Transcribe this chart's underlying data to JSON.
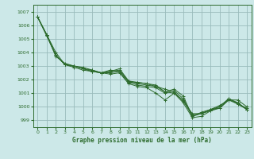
{
  "background_color": "#cce8e8",
  "grid_color": "#99bbbb",
  "line_color": "#2d6b2d",
  "title": "Graphe pression niveau de la mer (hPa)",
  "xlim": [
    -0.5,
    23.5
  ],
  "ylim": [
    998.5,
    1007.5
  ],
  "yticks": [
    999,
    1000,
    1001,
    1002,
    1003,
    1004,
    1005,
    1006,
    1007
  ],
  "xticks": [
    0,
    1,
    2,
    3,
    4,
    5,
    6,
    7,
    8,
    9,
    10,
    11,
    12,
    13,
    14,
    15,
    16,
    17,
    18,
    19,
    20,
    21,
    22,
    23
  ],
  "series": [
    [
      1006.6,
      1005.3,
      1003.8,
      1003.1,
      1003.0,
      1002.8,
      1002.7,
      1002.5,
      1002.6,
      1002.7,
      1001.9,
      1001.8,
      1001.7,
      1001.6,
      1001.1,
      1001.3,
      1000.8,
      999.3,
      999.6,
      999.8,
      1000.1,
      1000.5,
      1000.3,
      999.8
    ],
    [
      1006.6,
      1005.3,
      1003.7,
      1003.2,
      1003.0,
      1002.8,
      1002.6,
      1002.5,
      1002.4,
      1002.5,
      1001.7,
      1001.5,
      1001.4,
      1001.0,
      1000.5,
      1001.0,
      1000.3,
      999.2,
      999.3,
      999.7,
      999.9,
      1000.5,
      1000.2,
      999.9
    ],
    [
      1006.6,
      1005.3,
      1003.8,
      1003.1,
      1002.9,
      1002.7,
      1002.6,
      1002.5,
      1002.5,
      1002.6,
      1001.8,
      1001.6,
      1001.5,
      1001.4,
      1001.0,
      1001.2,
      1000.6,
      999.4,
      999.5,
      999.8,
      999.9,
      1000.5,
      1000.5,
      1000.0
    ],
    [
      1006.6,
      1005.2,
      1003.8,
      1003.1,
      1003.0,
      1002.9,
      1002.7,
      1002.5,
      1002.6,
      1002.8,
      1001.9,
      1001.7,
      1001.6,
      1001.5,
      1001.3,
      1001.1,
      1000.4,
      999.5,
      999.5,
      999.7,
      1000.0,
      1000.6,
      1000.3,
      999.8
    ],
    [
      1006.6,
      1005.3,
      1004.0,
      1003.1,
      1003.0,
      1002.8,
      1002.6,
      1002.5,
      1002.7,
      1002.6,
      1001.8,
      1001.8,
      1001.7,
      1001.5,
      1001.1,
      1001.0,
      1000.5,
      999.3,
      999.5,
      999.8,
      1000.0,
      1000.6,
      1000.2,
      999.8
    ]
  ]
}
